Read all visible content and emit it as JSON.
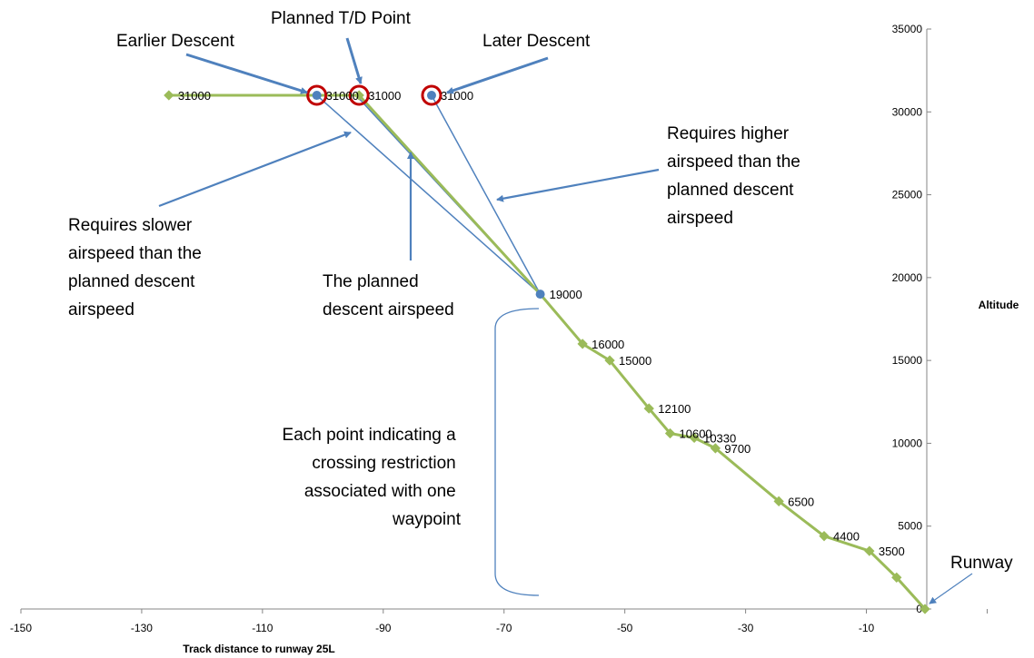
{
  "chart_data": {
    "type": "line",
    "title": "",
    "xlabel": "Track distance to runway 25L",
    "ylabel": "Altitude",
    "xlim": [
      -150,
      0
    ],
    "ylim": [
      0,
      35000
    ],
    "x_ticks": [
      "-150",
      "-130",
      "-110",
      "-90",
      "-70",
      "-50",
      "-30",
      "-10"
    ],
    "y_ticks": [
      "0",
      "5000",
      "10000",
      "15000",
      "20000",
      "25000",
      "30000",
      "35000"
    ],
    "grid": false,
    "legend": "none",
    "colors": {
      "profile": "#9bbb59",
      "descent": "#4f81bd",
      "marker": "#c00000",
      "arrow": "#4f81bd",
      "brace": "#4f81bd"
    },
    "series": [
      {
        "values_xy": [
          [
            -125.5,
            31000
          ],
          [
            -94,
            31000
          ],
          [
            -64,
            19000
          ],
          [
            -57,
            16000
          ],
          [
            -52.5,
            15000
          ],
          [
            -46,
            12100
          ],
          [
            -42.5,
            10600
          ],
          [
            -38.5,
            10330
          ],
          [
            -35,
            9700
          ],
          [
            -24.5,
            6500
          ],
          [
            -17,
            4400
          ],
          [
            -9.5,
            3500
          ],
          [
            -5,
            1900
          ],
          [
            -0.3,
            0
          ]
        ],
        "labels": [
          "31000",
          "31000",
          "19000",
          "16000",
          "15000",
          "12100",
          "10600",
          "10330",
          "9700",
          "6500",
          "4400",
          "3500",
          "",
          ""
        ]
      },
      {
        "values_xy": [
          [
            -101,
            31000
          ],
          [
            -64,
            19000
          ]
        ],
        "labels": [
          "31000",
          ""
        ]
      },
      {
        "values_xy": [
          [
            -82,
            31000
          ],
          [
            -64,
            19000
          ]
        ],
        "labels": [
          "31000",
          ""
        ]
      },
      {
        "values_xy": [
          [
            -94.5,
            31000
          ],
          [
            -64,
            19000
          ]
        ],
        "labels": [
          "",
          ""
        ]
      }
    ],
    "highlighted_points": [
      [
        -101,
        31000
      ],
      [
        -94,
        31000
      ],
      [
        -82,
        31000
      ]
    ],
    "annotations": {
      "earlier": "Earlier Descent",
      "planned_td": "Planned T/D Point",
      "later": "Later Descent",
      "higher": [
        "Requires higher",
        "airspeed than the",
        "planned descent",
        "airspeed"
      ],
      "slower": [
        "Requires slower",
        "airspeed than the",
        "planned descent",
        "airspeed"
      ],
      "planned_speed": [
        "The planned",
        "descent airspeed"
      ],
      "each_point": [
        "Each point indicating a",
        "crossing restriction",
        "associated with one",
        "waypoint"
      ],
      "runway": "Runway"
    }
  }
}
